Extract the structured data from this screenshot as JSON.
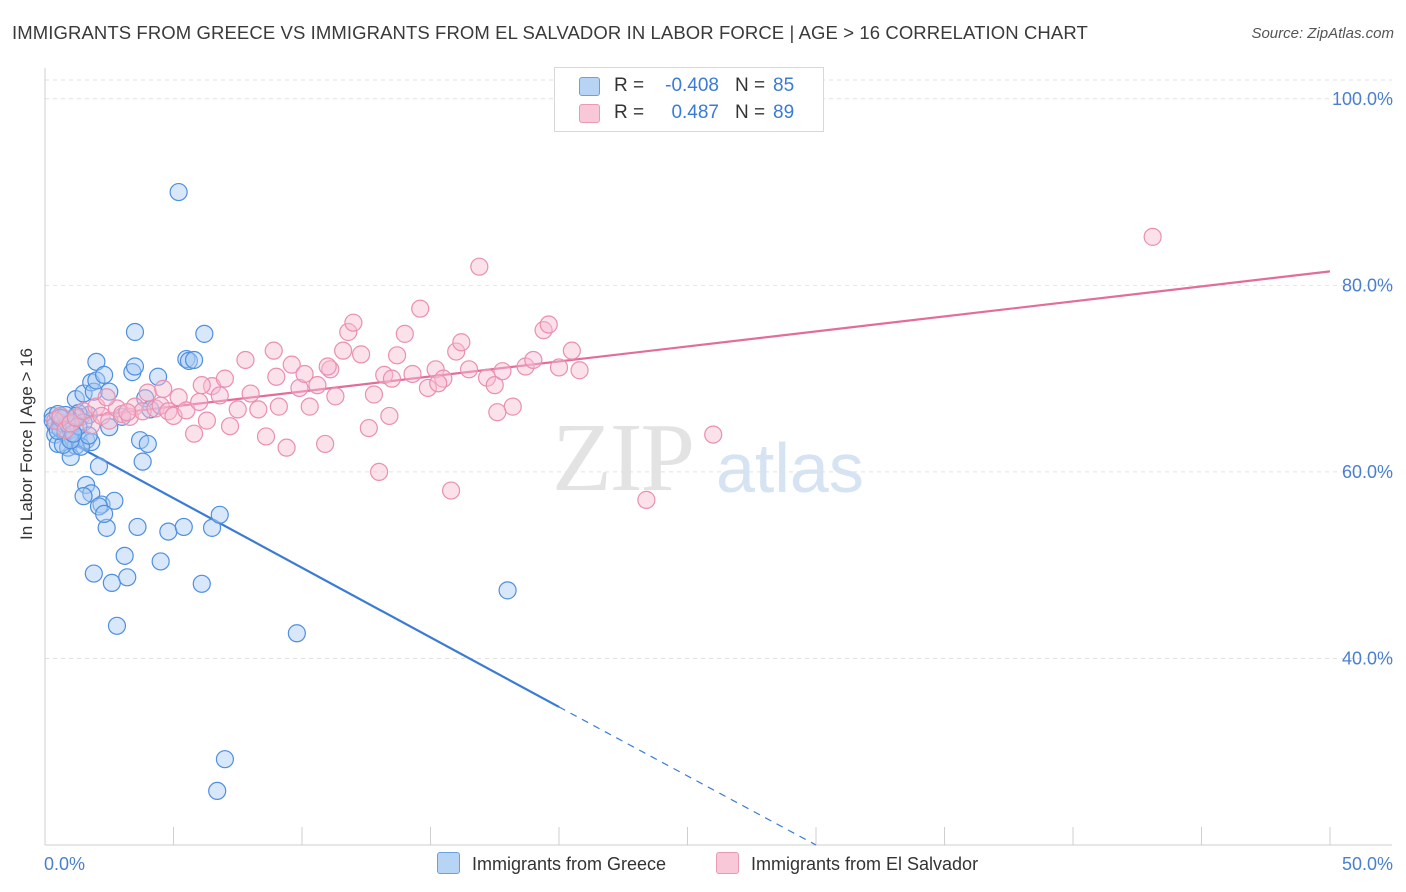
{
  "title": "IMMIGRANTS FROM GREECE VS IMMIGRANTS FROM EL SALVADOR IN LABOR FORCE | AGE > 16 CORRELATION CHART",
  "source": "Source: ZipAtlas.com",
  "watermark": {
    "zip": "ZIP",
    "atlas": "atlas"
  },
  "colors": {
    "blue": "#3a7bd5",
    "blue_fill": "#a9c9f1",
    "pink": "#e36d99",
    "pink_fill": "#f6bcd0",
    "tick": "#4a7fd0",
    "grid": "#e2e2e2"
  },
  "legend": {
    "rows": [
      {
        "r_label": "R =",
        "r_value": "-0.408",
        "n_label": "N =",
        "n_value": "85"
      },
      {
        "r_label": "R =",
        "r_value": "0.487",
        "n_label": "N =",
        "n_value": "89"
      }
    ]
  },
  "bottom_legend": {
    "greece": "Immigrants from Greece",
    "el_salvador": "Immigrants from El Salvador"
  },
  "chart_data": {
    "type": "scatter",
    "title": "IMMIGRANTS FROM GREECE VS IMMIGRANTS FROM EL SALVADOR IN LABOR FORCE | AGE > 16 CORRELATION CHART",
    "xlabel": "",
    "ylabel": "In Labor Force | Age > 16",
    "xlim": [
      0,
      50
    ],
    "ylim": [
      20,
      104
    ],
    "x_tick_labels": [
      "0.0%",
      "50.0%"
    ],
    "y_ticks": [
      40,
      60,
      80,
      100
    ],
    "y_tick_labels": [
      "40.0%",
      "60.0%",
      "80.0%",
      "100.0%"
    ],
    "grid": true,
    "legend_position": "top-center",
    "series": [
      {
        "name": "Immigrants from Greece",
        "color": "#3a7bd5",
        "R": -0.408,
        "N": 85,
        "trend": {
          "x0": 0.3,
          "y0": 64.2,
          "x1": 20.0,
          "y1": 34.8,
          "dashed_to_x": 30.0,
          "dashed_to_y": 20.0
        },
        "points": [
          [
            0.3,
            66.0
          ],
          [
            0.3,
            65.5
          ],
          [
            0.4,
            65.0
          ],
          [
            0.4,
            64.0
          ],
          [
            0.5,
            63.0
          ],
          [
            0.5,
            66.2
          ],
          [
            0.6,
            65.3
          ],
          [
            0.6,
            64.6
          ],
          [
            0.7,
            65.7
          ],
          [
            0.8,
            64.1
          ],
          [
            0.8,
            65.0
          ],
          [
            0.9,
            63.8
          ],
          [
            0.9,
            62.6
          ],
          [
            1.0,
            64.6
          ],
          [
            1.1,
            63.5
          ],
          [
            1.2,
            67.8
          ],
          [
            1.2,
            62.8
          ],
          [
            1.3,
            63.6
          ],
          [
            1.4,
            65.9
          ],
          [
            1.5,
            68.4
          ],
          [
            1.6,
            63.4
          ],
          [
            1.7,
            66.1
          ],
          [
            1.8,
            69.6
          ],
          [
            1.8,
            63.2
          ],
          [
            1.9,
            68.6
          ],
          [
            2.0,
            71.8
          ],
          [
            2.0,
            69.8
          ],
          [
            2.1,
            60.6
          ],
          [
            2.2,
            56.5
          ],
          [
            2.3,
            70.4
          ],
          [
            2.4,
            54.0
          ],
          [
            2.5,
            68.6
          ],
          [
            2.6,
            48.1
          ],
          [
            2.7,
            56.9
          ],
          [
            2.8,
            43.5
          ],
          [
            3.1,
            51.0
          ],
          [
            3.2,
            48.7
          ],
          [
            3.4,
            70.7
          ],
          [
            3.5,
            75.0
          ],
          [
            3.5,
            71.3
          ],
          [
            3.6,
            54.1
          ],
          [
            3.7,
            63.4
          ],
          [
            3.8,
            61.1
          ],
          [
            3.9,
            67.9
          ],
          [
            4.0,
            63.0
          ],
          [
            4.1,
            66.7
          ],
          [
            4.4,
            70.2
          ],
          [
            4.5,
            50.4
          ],
          [
            4.8,
            53.6
          ],
          [
            5.2,
            90.0
          ],
          [
            5.4,
            54.1
          ],
          [
            5.5,
            72.1
          ],
          [
            5.6,
            71.9
          ],
          [
            6.5,
            54.0
          ],
          [
            5.8,
            72.0
          ],
          [
            6.2,
            74.8
          ],
          [
            6.1,
            48.0
          ],
          [
            6.7,
            25.8
          ],
          [
            7.0,
            29.2
          ],
          [
            6.8,
            55.4
          ],
          [
            9.8,
            42.7
          ],
          [
            18.0,
            47.3
          ],
          [
            1.0,
            61.6
          ],
          [
            1.3,
            66.3
          ],
          [
            1.4,
            62.7
          ],
          [
            1.6,
            58.6
          ],
          [
            1.8,
            57.7
          ],
          [
            2.1,
            56.3
          ],
          [
            2.3,
            55.5
          ],
          [
            1.5,
            57.4
          ],
          [
            1.9,
            49.1
          ],
          [
            0.7,
            62.9
          ],
          [
            1.1,
            65.4
          ],
          [
            0.5,
            64.4
          ],
          [
            0.9,
            65.1
          ],
          [
            1.0,
            63.4
          ],
          [
            1.2,
            66.0
          ],
          [
            1.5,
            65.3
          ],
          [
            1.7,
            63.9
          ],
          [
            1.3,
            64.9
          ],
          [
            2.5,
            64.8
          ],
          [
            3.0,
            65.9
          ],
          [
            0.8,
            66.1
          ],
          [
            1.1,
            64.1
          ],
          [
            0.6,
            65.8
          ]
        ]
      },
      {
        "name": "Immigrants from El Salvador",
        "color": "#e36d99",
        "R": 0.487,
        "N": 89,
        "trend": {
          "x0": 0.3,
          "y0": 65.5,
          "x1": 50.0,
          "y1": 81.5
        },
        "points": [
          [
            0.4,
            65.5
          ],
          [
            0.6,
            66.0
          ],
          [
            0.8,
            64.5
          ],
          [
            1.0,
            65.2
          ],
          [
            1.2,
            65.8
          ],
          [
            1.5,
            66.5
          ],
          [
            1.8,
            65.0
          ],
          [
            2.0,
            67.0
          ],
          [
            2.2,
            66.0
          ],
          [
            2.5,
            65.5
          ],
          [
            2.8,
            66.8
          ],
          [
            3.0,
            66.2
          ],
          [
            3.3,
            65.9
          ],
          [
            3.5,
            67.0
          ],
          [
            3.8,
            66.5
          ],
          [
            4.0,
            68.5
          ],
          [
            4.3,
            66.8
          ],
          [
            4.5,
            67.1
          ],
          [
            4.8,
            66.5
          ],
          [
            5.0,
            66.0
          ],
          [
            5.2,
            68.0
          ],
          [
            5.5,
            66.6
          ],
          [
            5.8,
            64.1
          ],
          [
            6.0,
            67.5
          ],
          [
            6.3,
            65.5
          ],
          [
            6.5,
            69.2
          ],
          [
            6.8,
            68.2
          ],
          [
            7.0,
            70.0
          ],
          [
            7.2,
            64.9
          ],
          [
            7.5,
            66.7
          ],
          [
            7.8,
            72.0
          ],
          [
            8.0,
            68.4
          ],
          [
            8.3,
            66.7
          ],
          [
            8.6,
            63.8
          ],
          [
            8.9,
            73.0
          ],
          [
            9.1,
            67.0
          ],
          [
            9.4,
            62.6
          ],
          [
            9.6,
            71.5
          ],
          [
            9.9,
            69.0
          ],
          [
            10.1,
            70.5
          ],
          [
            10.3,
            67.0
          ],
          [
            10.6,
            69.3
          ],
          [
            10.9,
            63.0
          ],
          [
            11.1,
            71.0
          ],
          [
            11.3,
            68.1
          ],
          [
            11.6,
            73.0
          ],
          [
            11.8,
            75.0
          ],
          [
            12.0,
            76.0
          ],
          [
            12.3,
            72.6
          ],
          [
            12.6,
            64.7
          ],
          [
            12.8,
            68.3
          ],
          [
            13.0,
            60.0
          ],
          [
            13.2,
            70.4
          ],
          [
            13.5,
            70.0
          ],
          [
            13.7,
            72.5
          ],
          [
            14.0,
            74.8
          ],
          [
            14.3,
            70.5
          ],
          [
            14.6,
            77.5
          ],
          [
            14.9,
            69.0
          ],
          [
            15.2,
            71.0
          ],
          [
            15.5,
            70.0
          ],
          [
            15.8,
            58.0
          ],
          [
            16.0,
            72.9
          ],
          [
            16.2,
            73.9
          ],
          [
            16.5,
            71.0
          ],
          [
            16.9,
            82.0
          ],
          [
            17.2,
            70.1
          ],
          [
            17.5,
            69.3
          ],
          [
            17.8,
            70.8
          ],
          [
            18.2,
            67.0
          ],
          [
            18.7,
            71.3
          ],
          [
            19.0,
            72.0
          ],
          [
            19.4,
            75.2
          ],
          [
            19.6,
            75.8
          ],
          [
            20.0,
            71.2
          ],
          [
            20.5,
            73.0
          ],
          [
            20.8,
            70.9
          ],
          [
            23.4,
            57.0
          ],
          [
            26.0,
            64.0
          ],
          [
            43.1,
            85.2
          ],
          [
            2.4,
            68.0
          ],
          [
            3.2,
            66.4
          ],
          [
            4.6,
            68.9
          ],
          [
            6.1,
            69.3
          ],
          [
            9.0,
            70.2
          ],
          [
            11.0,
            71.3
          ],
          [
            13.4,
            66.0
          ],
          [
            15.3,
            69.5
          ],
          [
            17.6,
            66.4
          ]
        ]
      }
    ]
  }
}
